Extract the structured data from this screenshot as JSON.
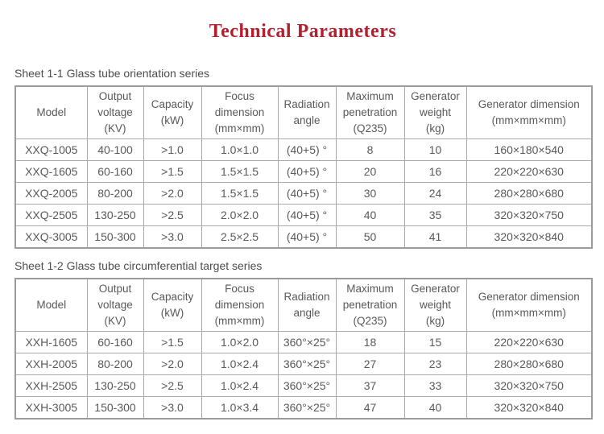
{
  "page": {
    "title": "Technical Parameters"
  },
  "colors": {
    "title_red": "#b41f2e",
    "table_text_gray": "#58595b",
    "border_gray": "#a9a9ab"
  },
  "tables": [
    {
      "caption": "Sheet 1-1 Glass tube orientation series",
      "headers": [
        "Model",
        "Output\nvoltage\n(KV)",
        "Capacity\n(kW)",
        "Focus\ndimension\n(mm×mm)",
        "Radiation\nangle",
        "Maximum\npenetration\n(Q235)",
        "Generator\nweight\n(kg)",
        "Generator dimension\n(mm×mm×mm)"
      ],
      "rows": [
        [
          "XXQ-1005",
          "40-100",
          ">1.0",
          "1.0×1.0",
          "(40+5) °",
          "8",
          "10",
          "160×180×540"
        ],
        [
          "XXQ-1605",
          "60-160",
          ">1.5",
          "1.5×1.5",
          "(40+5) °",
          "20",
          "16",
          "220×220×630"
        ],
        [
          "XXQ-2005",
          "80-200",
          ">2.0",
          "1.5×1.5",
          "(40+5) °",
          "30",
          "24",
          "280×280×680"
        ],
        [
          "XXQ-2505",
          "130-250",
          ">2.5",
          "2.0×2.0",
          "(40+5) °",
          "40",
          "35",
          "320×320×750"
        ],
        [
          "XXQ-3005",
          "150-300",
          ">3.0",
          "2.5×2.5",
          "(40+5) °",
          "50",
          "41",
          "320×320×840"
        ]
      ]
    },
    {
      "caption": "Sheet 1-2 Glass tube circumferential target series",
      "headers": [
        "Model",
        "Output\nvoltage\n(KV)",
        "Capacity\n(kW)",
        "Focus\ndimension\n(mm×mm)",
        "Radiation\nangle",
        "Maximum\npenetration\n(Q235)",
        "Generator\nweight\n(kg)",
        "Generator dimension\n(mm×mm×mm)"
      ],
      "rows": [
        [
          "XXH-1605",
          "60-160",
          ">1.5",
          "1.0×2.0",
          "360°×25°",
          "18",
          "15",
          "220×220×630"
        ],
        [
          "XXH-2005",
          "80-200",
          ">2.0",
          "1.0×2.4",
          "360°×25°",
          "27",
          "23",
          "280×280×680"
        ],
        [
          "XXH-2505",
          "130-250",
          ">2.5",
          "1.0×2.4",
          "360°×25°",
          "37",
          "33",
          "320×320×750"
        ],
        [
          "XXH-3005",
          "150-300",
          ">3.0",
          "1.0×3.4",
          "360°×25°",
          "47",
          "40",
          "320×320×840"
        ]
      ]
    }
  ]
}
